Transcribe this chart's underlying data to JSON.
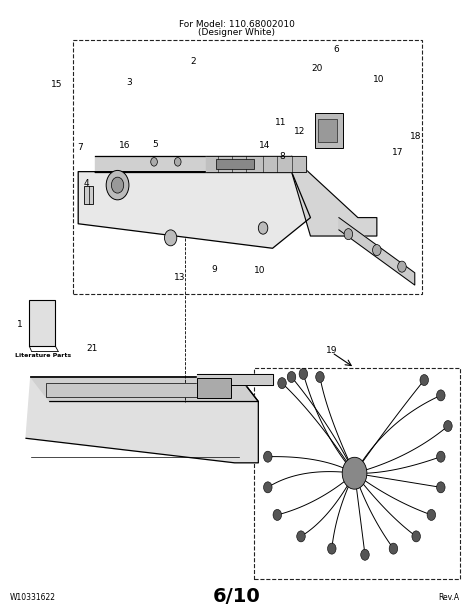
{
  "title_line1": "For Model: 110.68002010",
  "title_line2": "(Designer White)",
  "footer_left": "W10331622",
  "footer_center": "6/10",
  "footer_right": "Rev.A",
  "literature_label": "Literature Parts",
  "bg_color": "#ffffff",
  "line_color": "#000000"
}
